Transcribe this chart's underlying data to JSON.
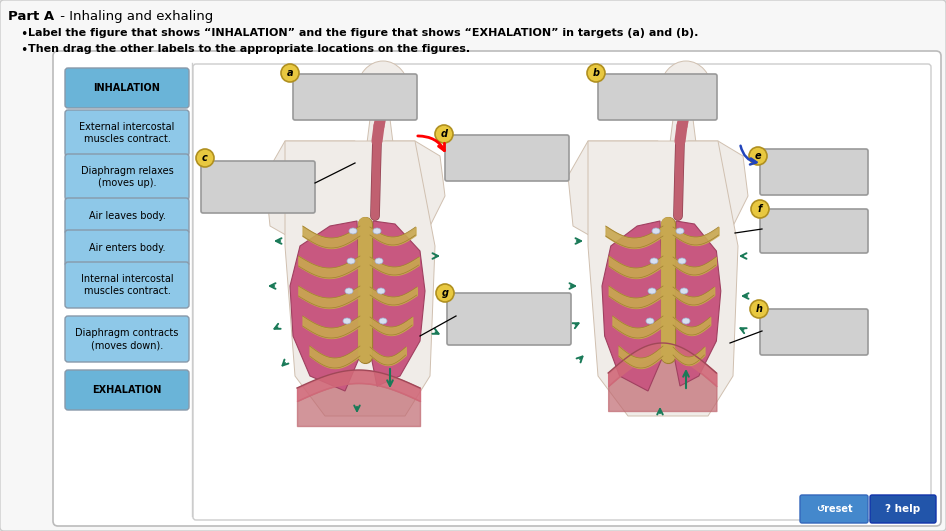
{
  "title_bold": "Part A",
  "title_rest": " - Inhaling and exhaling",
  "bullet1": "Label the figure that shows “INHALATION” and the figure that shows “EXHALATION” in targets (a) and (b).",
  "bullet2": "Then drag the other labels to the appropriate locations on the figures.",
  "sidebar_buttons": [
    {
      "text": "INHALATION",
      "bold": true
    },
    {
      "text": "External intercostal\nmuscles contract.",
      "bold": false
    },
    {
      "text": "Diaphragm relaxes\n(moves up).",
      "bold": false
    },
    {
      "text": "Air leaves body.",
      "bold": false
    },
    {
      "text": "Air enters body.",
      "bold": false
    },
    {
      "text": "Internal intercostal\nmuscles contract.",
      "bold": false
    },
    {
      "text": "Diaphragm contracts\n(moves down).",
      "bold": false
    },
    {
      "text": "EXHALATION",
      "bold": true
    }
  ],
  "button_color_normal": "#8ec8e8",
  "button_color_bold": "#6ab4d8",
  "outer_bg": "#e8e8e8",
  "inner_bg": "#ffffff",
  "panel_outer_bg": "#f0f0f0",
  "reset_text": "↺reset",
  "help_text": "? help",
  "reset_color": "#4488cc",
  "help_color": "#2255aa",
  "lung_color": "#c85880",
  "lung_edge": "#a04060",
  "rib_color": "#c8a850",
  "rib_edge": "#a08030",
  "body_color": "#f0ece8",
  "body_edge": "#d0c0b0",
  "trachea_color": "#c06070",
  "trachea_edge": "#904050",
  "diaphragm_color": "#d06878",
  "diaphragm_edge": "#a04858",
  "arrow_color": "#1a7a58",
  "box_color": "#d0d0d0",
  "box_edge": "#999999",
  "circle_fill": "#e8c840",
  "circle_edge": "#b09020"
}
